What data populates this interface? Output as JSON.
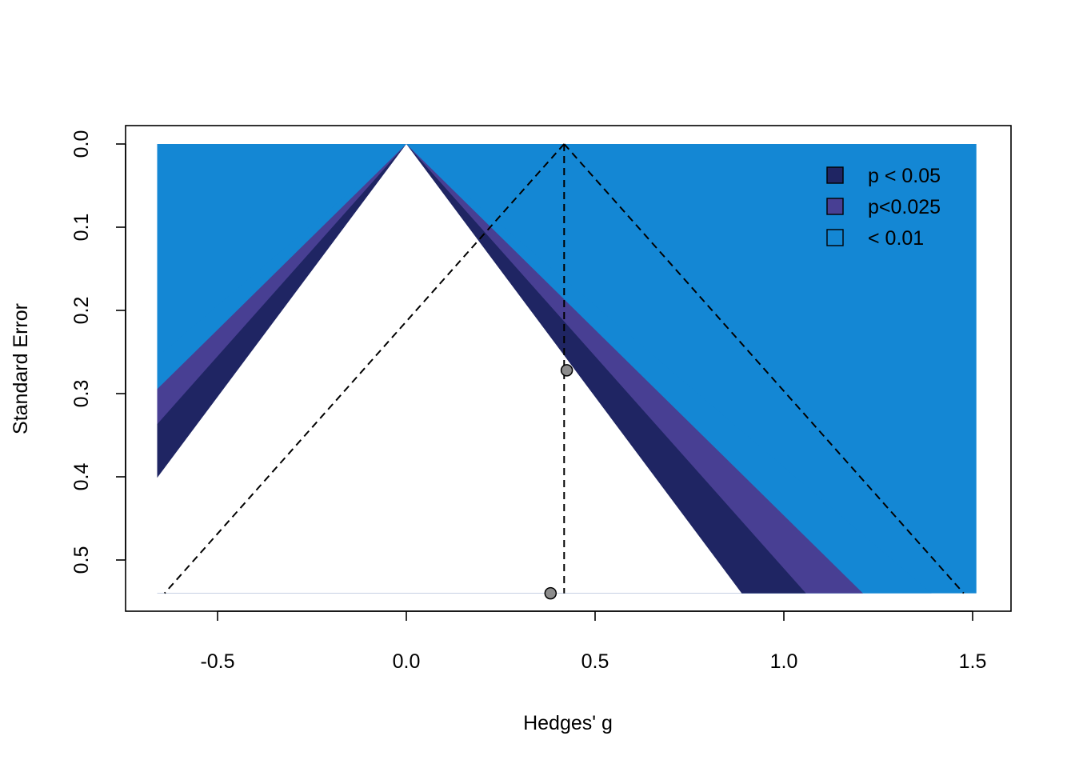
{
  "chart_data": {
    "type": "scatter",
    "subtype": "contour-enhanced funnel plot",
    "xlabel": "Hedges' g",
    "ylabel": "Standard Error",
    "xlim": [
      -0.66,
      1.51
    ],
    "ylim": [
      0,
      0.54
    ],
    "y_reversed": true,
    "x_ticks": [
      -0.5,
      0.0,
      0.5,
      1.0,
      1.5
    ],
    "x_tick_labels": [
      "-0.5",
      "0.0",
      "0.5",
      "1.0",
      "1.5"
    ],
    "y_ticks": [
      0.0,
      0.1,
      0.2,
      0.3,
      0.4,
      0.5
    ],
    "y_tick_labels": [
      "0.0",
      "0.1",
      "0.2",
      "0.3",
      "0.4",
      "0.5"
    ],
    "points": [
      {
        "x": 0.425,
        "y": 0.272
      },
      {
        "x": 0.382,
        "y": 0.54
      }
    ],
    "pooled_estimate": 0.418,
    "contour_center": 0.0,
    "contours": [
      {
        "label": "p < 0.05",
        "z": 1.96,
        "color": "#1F2563"
      },
      {
        "label": "p<0.025",
        "z": 2.24,
        "color": "#483F93"
      },
      {
        "label": "< 0.01",
        "z": 2.576,
        "color": "#1487D4"
      }
    ],
    "outer_color": "#1487D4",
    "legend_position": "top-right",
    "grid": false
  }
}
